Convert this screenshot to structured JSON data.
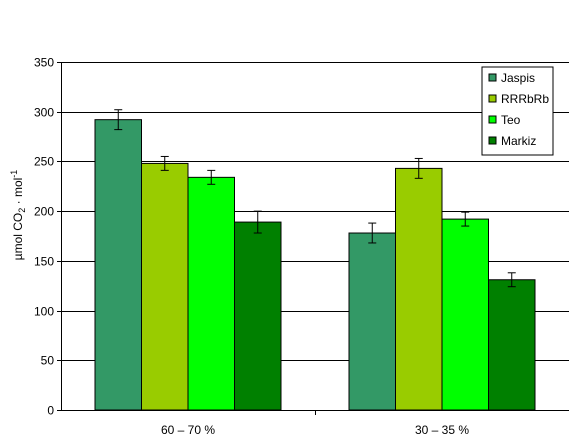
{
  "chart_data": {
    "type": "bar",
    "categories": [
      "60 – 70 %",
      "30 – 35 %"
    ],
    "series": [
      {
        "name": "Jaspis",
        "color": "#339966",
        "values": [
          292,
          178
        ],
        "errors": [
          10,
          10
        ]
      },
      {
        "name": "RRRbRb",
        "color": "#99cc00",
        "values": [
          248,
          243
        ],
        "errors": [
          7,
          10
        ]
      },
      {
        "name": "Teo",
        "color": "#00ff00",
        "values": [
          234,
          192
        ],
        "errors": [
          7,
          7
        ]
      },
      {
        "name": "Markiz",
        "color": "#008000",
        "values": [
          189,
          131
        ],
        "errors": [
          11,
          7
        ]
      }
    ],
    "ylabel": {
      "main": "µmol CO",
      "sub": "2",
      "middle": " · mol",
      "sup": "-1"
    },
    "ylim": [
      0,
      350
    ],
    "yticks": [
      0,
      50,
      100,
      150,
      200,
      250,
      300,
      350
    ],
    "grid": true,
    "legend_position": "top-right",
    "error_bars": true
  }
}
